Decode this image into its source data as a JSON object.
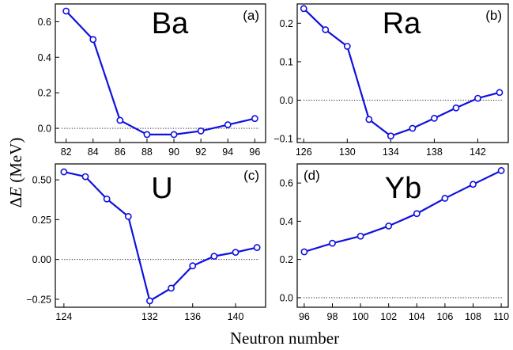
{
  "figure": {
    "xlabel": "Neutron number",
    "ylabel_prefix": "Δ",
    "ylabel_symbol": "E",
    "ylabel_suffix": " (MeV)"
  },
  "colors": {
    "line": "#1010e0",
    "axis": "#000000",
    "zero_line": "#000000"
  },
  "chart_data": [
    {
      "type": "line",
      "element": "Ba",
      "panel_label": "(a)",
      "x": [
        82,
        84,
        86,
        88,
        90,
        92,
        94,
        96
      ],
      "y": [
        0.66,
        0.5,
        0.045,
        -0.035,
        -0.035,
        -0.015,
        0.02,
        0.055
      ],
      "xlim": [
        81.2,
        96.8
      ],
      "ylim": [
        -0.08,
        0.7
      ],
      "xticks": [
        82,
        84,
        86,
        88,
        90,
        92,
        94,
        96
      ],
      "xtick_labels": [
        "82",
        "84",
        "86",
        "88",
        "90",
        "92",
        "94",
        "96"
      ],
      "yticks": [
        0.0,
        0.2,
        0.4,
        0.6
      ],
      "ytick_labels": [
        "0.0",
        "0.2",
        "0.4",
        "0.6"
      ],
      "zero_line": true,
      "marker": "open-circle"
    },
    {
      "type": "line",
      "element": "Ra",
      "panel_label": "(b)",
      "x": [
        126,
        128,
        130,
        132,
        134,
        136,
        138,
        140,
        142,
        144
      ],
      "y": [
        0.238,
        0.183,
        0.14,
        -0.05,
        -0.093,
        -0.073,
        -0.047,
        -0.02,
        0.005,
        0.02
      ],
      "xlim": [
        125.4,
        144.8
      ],
      "ylim": [
        -0.11,
        0.25
      ],
      "xticks": [
        126,
        130,
        134,
        138,
        142
      ],
      "xtick_labels": [
        "126",
        "130",
        "134",
        "138",
        "142"
      ],
      "yticks": [
        -0.1,
        0.0,
        0.1,
        0.2
      ],
      "ytick_labels": [
        "−0.1",
        "0.0",
        "0.1",
        "0.2"
      ],
      "zero_line": true,
      "marker": "open-circle"
    },
    {
      "type": "line",
      "element": "U",
      "panel_label": "(c)",
      "x": [
        124,
        126,
        128,
        130,
        132,
        134,
        136,
        138,
        140,
        142
      ],
      "y": [
        0.55,
        0.52,
        0.38,
        0.27,
        -0.26,
        -0.18,
        -0.04,
        0.02,
        0.045,
        0.075
      ],
      "xlim": [
        123.2,
        142.8
      ],
      "ylim": [
        -0.3,
        0.6
      ],
      "xticks": [
        124,
        132,
        136,
        140
      ],
      "xtick_labels": [
        "124",
        "132",
        "136",
        "140"
      ],
      "yticks": [
        -0.25,
        0.0,
        0.25,
        0.5
      ],
      "ytick_labels": [
        "−0.25",
        "0.00",
        "0.25",
        "0.50"
      ],
      "zero_line": true,
      "marker": "open-circle"
    },
    {
      "type": "line",
      "element": "Yb",
      "panel_label": "(d)",
      "x": [
        96,
        98,
        100,
        102,
        104,
        106,
        108,
        110
      ],
      "y": [
        0.24,
        0.285,
        0.322,
        0.375,
        0.44,
        0.52,
        0.593,
        0.665
      ],
      "xlim": [
        95.5,
        110.5
      ],
      "ylim": [
        -0.05,
        0.7
      ],
      "xticks": [
        96,
        98,
        100,
        102,
        104,
        106,
        108,
        110
      ],
      "xtick_labels": [
        "96",
        "98",
        "100",
        "102",
        "104",
        "106",
        "108",
        "110"
      ],
      "yticks": [
        0.0,
        0.2,
        0.4,
        0.6
      ],
      "ytick_labels": [
        "0.0",
        "0.2",
        "0.4",
        "0.6"
      ],
      "zero_line": true,
      "marker": "open-circle"
    }
  ]
}
